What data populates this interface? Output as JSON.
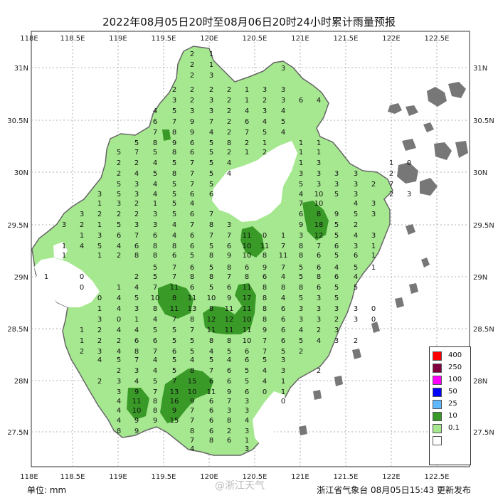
{
  "title": "2022年08月05日20时至08月06日20时24小时累计雨量预报",
  "axes": {
    "lon_labels": [
      "118E",
      "118.5E",
      "119E",
      "119.5E",
      "120E",
      "120.5E",
      "121E",
      "121.5E",
      "122E",
      "122.5E"
    ],
    "lat_labels": [
      "31N",
      "30.5N",
      "30N",
      "29.5N",
      "29N",
      "28.5N",
      "28N",
      "27.5N"
    ]
  },
  "legend": {
    "items": [
      {
        "label": "400",
        "color": "#ff0000"
      },
      {
        "label": "250",
        "color": "#800040"
      },
      {
        "label": "100",
        "color": "#ff00ff"
      },
      {
        "label": "50",
        "color": "#0000ff"
      },
      {
        "label": "25",
        "color": "#60b8ff"
      },
      {
        "label": "10",
        "color": "#3a9a28"
      },
      {
        "label": "0.1",
        "color": "#a6e890"
      }
    ],
    "no_rain_color": "#ffffff"
  },
  "footer": {
    "unit": "单位:  mm",
    "watermark": "@浙江天气",
    "publisher": "浙江省气象台 08月05日15:43 更新发布"
  },
  "colors": {
    "light_rain": "#a6e890",
    "moderate_rain": "#3a9a28",
    "islands": "#777777"
  },
  "rain_values": [
    [
      270,
      75,
      "2"
    ],
    [
      297,
      75,
      "1"
    ],
    [
      270,
      90,
      "2"
    ],
    [
      297,
      90,
      "1"
    ],
    [
      270,
      105,
      "2"
    ],
    [
      297,
      105,
      "3"
    ],
    [
      398,
      95,
      "3"
    ],
    [
      245,
      125,
      "2"
    ],
    [
      270,
      125,
      "2"
    ],
    [
      297,
      125,
      "2"
    ],
    [
      322,
      125,
      "2"
    ],
    [
      347,
      125,
      "1"
    ],
    [
      372,
      125,
      "3"
    ],
    [
      398,
      125,
      "3"
    ],
    [
      245,
      140,
      "3"
    ],
    [
      270,
      140,
      "2"
    ],
    [
      297,
      140,
      "3"
    ],
    [
      322,
      140,
      "2"
    ],
    [
      347,
      140,
      "1"
    ],
    [
      372,
      140,
      "2"
    ],
    [
      398,
      140,
      "3"
    ],
    [
      423,
      140,
      "6"
    ],
    [
      448,
      140,
      "4"
    ],
    [
      218,
      155,
      "4"
    ],
    [
      245,
      155,
      "5"
    ],
    [
      270,
      155,
      "3"
    ],
    [
      297,
      155,
      "3"
    ],
    [
      322,
      155,
      "2"
    ],
    [
      347,
      155,
      "4"
    ],
    [
      372,
      155,
      "3"
    ],
    [
      398,
      155,
      "4"
    ],
    [
      218,
      170,
      "6"
    ],
    [
      245,
      170,
      "7"
    ],
    [
      270,
      170,
      "9"
    ],
    [
      297,
      170,
      "7"
    ],
    [
      322,
      170,
      "2"
    ],
    [
      347,
      170,
      "6"
    ],
    [
      372,
      170,
      "4"
    ],
    [
      398,
      170,
      "5"
    ],
    [
      218,
      185,
      "7"
    ],
    [
      245,
      185,
      "8"
    ],
    [
      270,
      185,
      "9"
    ],
    [
      297,
      185,
      "4"
    ],
    [
      322,
      185,
      "2"
    ],
    [
      347,
      185,
      "7"
    ],
    [
      372,
      185,
      "5"
    ],
    [
      398,
      185,
      "4"
    ],
    [
      192,
      200,
      "5"
    ],
    [
      218,
      200,
      "8"
    ],
    [
      245,
      200,
      "9"
    ],
    [
      270,
      200,
      "6"
    ],
    [
      297,
      200,
      "5"
    ],
    [
      322,
      200,
      "8"
    ],
    [
      347,
      200,
      "2"
    ],
    [
      372,
      200,
      "1"
    ],
    [
      423,
      200,
      "1"
    ],
    [
      448,
      200,
      "1"
    ],
    [
      167,
      213,
      "5"
    ],
    [
      192,
      213,
      "7"
    ],
    [
      218,
      213,
      "5"
    ],
    [
      245,
      213,
      "8"
    ],
    [
      270,
      213,
      "6"
    ],
    [
      297,
      213,
      "5"
    ],
    [
      322,
      213,
      "2"
    ],
    [
      347,
      213,
      "1"
    ],
    [
      372,
      213,
      "2"
    ],
    [
      423,
      213,
      "1"
    ],
    [
      448,
      213,
      "1"
    ],
    [
      167,
      228,
      "2"
    ],
    [
      192,
      228,
      "2"
    ],
    [
      218,
      228,
      "4"
    ],
    [
      245,
      228,
      "5"
    ],
    [
      270,
      228,
      "7"
    ],
    [
      297,
      228,
      "5"
    ],
    [
      322,
      228,
      "4"
    ],
    [
      423,
      228,
      "1"
    ],
    [
      448,
      228,
      "3"
    ],
    [
      550,
      228,
      "1"
    ],
    [
      575,
      228,
      "0"
    ],
    [
      167,
      243,
      "2"
    ],
    [
      192,
      243,
      "4"
    ],
    [
      218,
      243,
      "5"
    ],
    [
      245,
      243,
      "8"
    ],
    [
      270,
      243,
      "7"
    ],
    [
      297,
      243,
      "5"
    ],
    [
      322,
      243,
      "4"
    ],
    [
      423,
      243,
      "3"
    ],
    [
      448,
      243,
      "3"
    ],
    [
      473,
      243,
      "3"
    ],
    [
      500,
      243,
      "3"
    ],
    [
      550,
      243,
      "2"
    ],
    [
      167,
      258,
      "5"
    ],
    [
      192,
      258,
      "3"
    ],
    [
      218,
      258,
      "4"
    ],
    [
      245,
      258,
      "5"
    ],
    [
      270,
      258,
      "7"
    ],
    [
      297,
      258,
      "5"
    ],
    [
      423,
      258,
      "5"
    ],
    [
      448,
      258,
      "3"
    ],
    [
      473,
      258,
      "3"
    ],
    [
      500,
      258,
      "3"
    ],
    [
      525,
      258,
      "2"
    ],
    [
      550,
      258,
      "7"
    ],
    [
      140,
      272,
      "3"
    ],
    [
      167,
      272,
      "5"
    ],
    [
      192,
      272,
      "3"
    ],
    [
      218,
      272,
      "4"
    ],
    [
      245,
      272,
      "5"
    ],
    [
      270,
      272,
      "6"
    ],
    [
      297,
      272,
      "6"
    ],
    [
      423,
      272,
      "4"
    ],
    [
      448,
      272,
      "10"
    ],
    [
      473,
      272,
      "5"
    ],
    [
      500,
      272,
      "3"
    ],
    [
      550,
      272,
      "2"
    ],
    [
      575,
      272,
      "3"
    ],
    [
      140,
      285,
      "1"
    ],
    [
      167,
      285,
      "3"
    ],
    [
      192,
      285,
      "2"
    ],
    [
      218,
      285,
      "1"
    ],
    [
      245,
      285,
      "5"
    ],
    [
      270,
      285,
      "4"
    ],
    [
      423,
      285,
      "7"
    ],
    [
      448,
      285,
      "10"
    ],
    [
      500,
      285,
      "4"
    ],
    [
      525,
      285,
      "3"
    ],
    [
      115,
      300,
      "3"
    ],
    [
      140,
      300,
      "2"
    ],
    [
      167,
      300,
      "2"
    ],
    [
      192,
      300,
      "2"
    ],
    [
      218,
      300,
      "3"
    ],
    [
      245,
      300,
      "5"
    ],
    [
      270,
      300,
      "6"
    ],
    [
      297,
      300,
      "7"
    ],
    [
      423,
      300,
      "6"
    ],
    [
      448,
      300,
      "8"
    ],
    [
      473,
      300,
      "9"
    ],
    [
      500,
      300,
      "5"
    ],
    [
      525,
      300,
      "3"
    ],
    [
      90,
      315,
      "3"
    ],
    [
      115,
      315,
      "2"
    ],
    [
      140,
      315,
      "1"
    ],
    [
      167,
      315,
      "5"
    ],
    [
      192,
      315,
      "3"
    ],
    [
      218,
      315,
      "3"
    ],
    [
      245,
      315,
      "4"
    ],
    [
      270,
      315,
      "7"
    ],
    [
      297,
      315,
      "8"
    ],
    [
      322,
      315,
      "3"
    ],
    [
      423,
      315,
      "9"
    ],
    [
      448,
      315,
      "18"
    ],
    [
      473,
      315,
      "5"
    ],
    [
      500,
      315,
      "2"
    ],
    [
      115,
      330,
      "1"
    ],
    [
      140,
      330,
      "3"
    ],
    [
      167,
      330,
      "6"
    ],
    [
      192,
      330,
      "7"
    ],
    [
      218,
      330,
      "6"
    ],
    [
      245,
      330,
      "4"
    ],
    [
      270,
      330,
      "6"
    ],
    [
      297,
      330,
      "7"
    ],
    [
      322,
      330,
      "7"
    ],
    [
      347,
      330,
      "11"
    ],
    [
      372,
      330,
      "0"
    ],
    [
      398,
      330,
      "1"
    ],
    [
      423,
      330,
      "3"
    ],
    [
      448,
      330,
      "12"
    ],
    [
      473,
      330,
      "5"
    ],
    [
      500,
      330,
      "4"
    ],
    [
      525,
      330,
      "3"
    ],
    [
      90,
      345,
      "1"
    ],
    [
      115,
      345,
      "4"
    ],
    [
      140,
      345,
      "5"
    ],
    [
      167,
      345,
      "4"
    ],
    [
      192,
      345,
      "6"
    ],
    [
      218,
      345,
      "8"
    ],
    [
      245,
      345,
      "8"
    ],
    [
      270,
      345,
      "6"
    ],
    [
      297,
      345,
      "5"
    ],
    [
      322,
      345,
      "6"
    ],
    [
      347,
      345,
      "10"
    ],
    [
      372,
      345,
      "11"
    ],
    [
      398,
      345,
      "7"
    ],
    [
      423,
      345,
      "8"
    ],
    [
      448,
      345,
      "7"
    ],
    [
      473,
      345,
      "6"
    ],
    [
      500,
      345,
      "3"
    ],
    [
      525,
      345,
      "1"
    ],
    [
      90,
      358,
      "1"
    ],
    [
      140,
      358,
      "1"
    ],
    [
      167,
      358,
      "2"
    ],
    [
      192,
      358,
      "8"
    ],
    [
      218,
      358,
      "8"
    ],
    [
      245,
      358,
      "6"
    ],
    [
      270,
      358,
      "5"
    ],
    [
      297,
      358,
      "8"
    ],
    [
      322,
      358,
      "9"
    ],
    [
      347,
      358,
      "10"
    ],
    [
      372,
      358,
      "8"
    ],
    [
      398,
      358,
      "11"
    ],
    [
      423,
      358,
      "8"
    ],
    [
      448,
      358,
      "6"
    ],
    [
      473,
      358,
      "5"
    ],
    [
      500,
      358,
      "6"
    ],
    [
      525,
      358,
      "1"
    ],
    [
      218,
      375,
      "5"
    ],
    [
      245,
      375,
      "7"
    ],
    [
      270,
      375,
      "6"
    ],
    [
      297,
      375,
      "5"
    ],
    [
      322,
      375,
      "8"
    ],
    [
      347,
      375,
      "6"
    ],
    [
      372,
      375,
      "9"
    ],
    [
      398,
      375,
      "7"
    ],
    [
      423,
      375,
      "5"
    ],
    [
      448,
      375,
      "6"
    ],
    [
      473,
      375,
      "4"
    ],
    [
      500,
      375,
      "5"
    ],
    [
      525,
      375,
      "1"
    ],
    [
      65,
      388,
      "1"
    ],
    [
      115,
      388,
      "0"
    ],
    [
      192,
      388,
      "2"
    ],
    [
      218,
      388,
      "5"
    ],
    [
      245,
      388,
      "7"
    ],
    [
      270,
      388,
      "8"
    ],
    [
      297,
      388,
      "8"
    ],
    [
      322,
      388,
      "7"
    ],
    [
      347,
      388,
      "8"
    ],
    [
      372,
      388,
      "6"
    ],
    [
      398,
      388,
      "4"
    ],
    [
      423,
      388,
      "5"
    ],
    [
      448,
      388,
      "8"
    ],
    [
      473,
      388,
      "6"
    ],
    [
      500,
      388,
      "4"
    ],
    [
      115,
      403,
      "0"
    ],
    [
      167,
      403,
      "1"
    ],
    [
      192,
      403,
      "4"
    ],
    [
      218,
      403,
      "7"
    ],
    [
      245,
      403,
      "11"
    ],
    [
      270,
      403,
      "6"
    ],
    [
      297,
      403,
      "5"
    ],
    [
      322,
      403,
      "6"
    ],
    [
      347,
      403,
      "11"
    ],
    [
      372,
      403,
      "8"
    ],
    [
      398,
      403,
      "8"
    ],
    [
      423,
      403,
      "8"
    ],
    [
      448,
      403,
      "6"
    ],
    [
      473,
      403,
      "5"
    ],
    [
      500,
      403,
      "5"
    ],
    [
      140,
      418,
      "0"
    ],
    [
      167,
      418,
      "4"
    ],
    [
      192,
      418,
      "5"
    ],
    [
      218,
      418,
      "10"
    ],
    [
      245,
      418,
      "8"
    ],
    [
      270,
      418,
      "11"
    ],
    [
      297,
      418,
      "10"
    ],
    [
      322,
      418,
      "9"
    ],
    [
      347,
      418,
      "17"
    ],
    [
      372,
      418,
      "8"
    ],
    [
      398,
      418,
      "4"
    ],
    [
      423,
      418,
      "5"
    ],
    [
      448,
      418,
      "3"
    ],
    [
      473,
      418,
      "5"
    ],
    [
      140,
      433,
      "1"
    ],
    [
      167,
      433,
      "4"
    ],
    [
      192,
      433,
      "3"
    ],
    [
      218,
      433,
      "8"
    ],
    [
      245,
      433,
      "11"
    ],
    [
      270,
      433,
      "13"
    ],
    [
      297,
      433,
      "8"
    ],
    [
      322,
      433,
      "11"
    ],
    [
      347,
      433,
      "11"
    ],
    [
      372,
      433,
      "8"
    ],
    [
      398,
      433,
      "6"
    ],
    [
      423,
      433,
      "3"
    ],
    [
      448,
      433,
      "3"
    ],
    [
      473,
      433,
      "3"
    ],
    [
      500,
      433,
      "3"
    ],
    [
      525,
      433,
      "0"
    ],
    [
      140,
      448,
      "3"
    ],
    [
      167,
      448,
      "0"
    ],
    [
      192,
      448,
      "1"
    ],
    [
      218,
      448,
      "4"
    ],
    [
      245,
      448,
      "7"
    ],
    [
      270,
      448,
      "8"
    ],
    [
      297,
      448,
      "12"
    ],
    [
      322,
      448,
      "12"
    ],
    [
      347,
      448,
      "10"
    ],
    [
      372,
      448,
      "8"
    ],
    [
      398,
      448,
      "6"
    ],
    [
      423,
      448,
      "3"
    ],
    [
      448,
      448,
      "3"
    ],
    [
      473,
      448,
      "2"
    ],
    [
      500,
      448,
      "3"
    ],
    [
      525,
      448,
      "0"
    ],
    [
      115,
      463,
      "1"
    ],
    [
      140,
      463,
      "2"
    ],
    [
      167,
      463,
      "4"
    ],
    [
      192,
      463,
      "4"
    ],
    [
      218,
      463,
      "5"
    ],
    [
      245,
      463,
      "5"
    ],
    [
      270,
      463,
      "7"
    ],
    [
      297,
      463,
      "11"
    ],
    [
      322,
      463,
      "11"
    ],
    [
      347,
      463,
      "11"
    ],
    [
      372,
      463,
      "9"
    ],
    [
      398,
      463,
      "6"
    ],
    [
      423,
      463,
      "4"
    ],
    [
      448,
      463,
      "2"
    ],
    [
      473,
      463,
      "3"
    ],
    [
      115,
      478,
      "1"
    ],
    [
      140,
      478,
      "2"
    ],
    [
      167,
      478,
      "2"
    ],
    [
      192,
      478,
      "6"
    ],
    [
      218,
      478,
      "6"
    ],
    [
      245,
      478,
      "5"
    ],
    [
      270,
      478,
      "5"
    ],
    [
      297,
      478,
      "8"
    ],
    [
      322,
      478,
      "8"
    ],
    [
      347,
      478,
      "10"
    ],
    [
      372,
      478,
      "7"
    ],
    [
      398,
      478,
      "6"
    ],
    [
      423,
      478,
      "5"
    ],
    [
      448,
      478,
      "4"
    ],
    [
      473,
      478,
      "3"
    ],
    [
      500,
      478,
      "2"
    ],
    [
      115,
      493,
      "2"
    ],
    [
      140,
      493,
      "3"
    ],
    [
      167,
      493,
      "4"
    ],
    [
      192,
      493,
      "8"
    ],
    [
      218,
      493,
      "7"
    ],
    [
      245,
      493,
      "6"
    ],
    [
      270,
      493,
      "5"
    ],
    [
      297,
      493,
      "4"
    ],
    [
      322,
      493,
      "5"
    ],
    [
      347,
      493,
      "6"
    ],
    [
      372,
      493,
      "7"
    ],
    [
      398,
      493,
      "5"
    ],
    [
      423,
      493,
      "2"
    ],
    [
      140,
      505,
      "4"
    ],
    [
      167,
      505,
      "5"
    ],
    [
      192,
      505,
      "7"
    ],
    [
      218,
      505,
      "4"
    ],
    [
      245,
      505,
      "5"
    ],
    [
      270,
      505,
      "4"
    ],
    [
      297,
      505,
      "5"
    ],
    [
      322,
      505,
      "4"
    ],
    [
      347,
      505,
      "6"
    ],
    [
      372,
      505,
      "5"
    ],
    [
      398,
      505,
      "3"
    ],
    [
      167,
      520,
      "2"
    ],
    [
      192,
      520,
      "3"
    ],
    [
      218,
      520,
      "4"
    ],
    [
      245,
      520,
      "5"
    ],
    [
      270,
      520,
      "8"
    ],
    [
      297,
      520,
      "7"
    ],
    [
      322,
      520,
      "6"
    ],
    [
      347,
      520,
      "5"
    ],
    [
      372,
      520,
      "4"
    ],
    [
      398,
      520,
      "3"
    ],
    [
      448,
      520,
      "2"
    ],
    [
      140,
      535,
      "2"
    ],
    [
      167,
      535,
      "3"
    ],
    [
      192,
      535,
      "4"
    ],
    [
      218,
      535,
      "5"
    ],
    [
      245,
      535,
      "7"
    ],
    [
      270,
      535,
      "15"
    ],
    [
      297,
      535,
      "6"
    ],
    [
      322,
      535,
      "6"
    ],
    [
      347,
      535,
      "5"
    ],
    [
      372,
      535,
      "4"
    ],
    [
      398,
      535,
      "1"
    ],
    [
      167,
      550,
      "3"
    ],
    [
      192,
      550,
      "9"
    ],
    [
      218,
      550,
      "7"
    ],
    [
      245,
      550,
      "13"
    ],
    [
      270,
      550,
      "10"
    ],
    [
      297,
      550,
      "11"
    ],
    [
      322,
      550,
      "9"
    ],
    [
      347,
      550,
      "6"
    ],
    [
      372,
      550,
      "0"
    ],
    [
      398,
      550,
      "1"
    ],
    [
      167,
      563,
      "4"
    ],
    [
      192,
      563,
      "11"
    ],
    [
      218,
      563,
      "8"
    ],
    [
      245,
      563,
      "16"
    ],
    [
      270,
      563,
      "9"
    ],
    [
      297,
      563,
      "6"
    ],
    [
      322,
      563,
      "7"
    ],
    [
      347,
      563,
      "3"
    ],
    [
      398,
      563,
      "0"
    ],
    [
      167,
      576,
      "4"
    ],
    [
      192,
      576,
      "10"
    ],
    [
      218,
      576,
      "8"
    ],
    [
      245,
      576,
      "9"
    ],
    [
      270,
      576,
      "7"
    ],
    [
      297,
      576,
      "6"
    ],
    [
      322,
      576,
      "3"
    ],
    [
      347,
      576,
      "3"
    ],
    [
      167,
      590,
      "4"
    ],
    [
      192,
      590,
      "9"
    ],
    [
      218,
      590,
      "9"
    ],
    [
      245,
      590,
      "15"
    ],
    [
      270,
      590,
      "7"
    ],
    [
      297,
      590,
      "6"
    ],
    [
      322,
      590,
      "8"
    ],
    [
      347,
      590,
      "4"
    ],
    [
      167,
      605,
      "8"
    ],
    [
      192,
      605,
      "9"
    ],
    [
      270,
      605,
      "8"
    ],
    [
      297,
      605,
      "6"
    ],
    [
      322,
      605,
      "2"
    ],
    [
      347,
      605,
      "3"
    ],
    [
      270,
      618,
      "7"
    ],
    [
      297,
      618,
      "8"
    ],
    [
      322,
      618,
      "6"
    ],
    [
      347,
      618,
      "1"
    ],
    [
      270,
      630,
      "4"
    ],
    [
      347,
      630,
      "3"
    ]
  ]
}
